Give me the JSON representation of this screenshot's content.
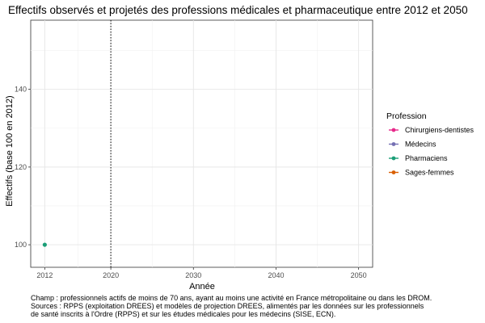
{
  "chart_data": {
    "type": "line",
    "title": "Effectifs observés et projetés des professions médicales et pharmaceutique entre 2012 et 2050",
    "xlabel": "Année",
    "ylabel": "Effectifs (base 100 en 2012)",
    "xlim": [
      2010.3,
      2051.7
    ],
    "ylim": [
      94.2,
      157.8
    ],
    "x_ticks": [
      2012,
      2020,
      2030,
      2040,
      2050
    ],
    "y_ticks": [
      100,
      120,
      140
    ],
    "y_minor_ticks": [
      110,
      130,
      150
    ],
    "x_minor_ticks": [
      2016,
      2025,
      2035,
      2045
    ],
    "vertical_reference_line": 2020,
    "grid": true,
    "legend_title": "Profession",
    "legend_position": "right",
    "series": [
      {
        "name": "Chirurgiens-dentistes",
        "color": "#e7298a",
        "points": []
      },
      {
        "name": "Médecins",
        "color": "#7570b3",
        "points": []
      },
      {
        "name": "Pharmaciens",
        "color": "#1b9e77",
        "points": [
          {
            "x": 2012,
            "y": 100
          }
        ]
      },
      {
        "name": "Sages-femmes",
        "color": "#d95f02",
        "points": []
      }
    ]
  },
  "caption": {
    "line1": "Champ : professionnels actifs de moins de 70 ans, ayant au moins une activité en France métropolitaine ou dans les DROM.",
    "line2": "Sources : RPPS (exploitation DREES) et modèles de projection DREES, alimentés par les données sur les professionnels",
    "line3": "de santé inscrits à l'Ordre (RPPS) et sur les études médicales pour les médecins (SISE, ECN)."
  }
}
